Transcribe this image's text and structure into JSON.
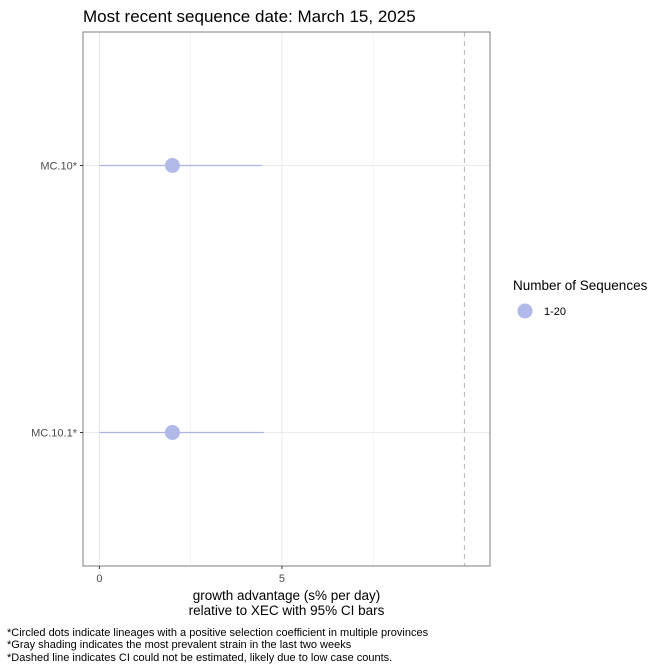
{
  "chart_data": {
    "type": "scatter",
    "title": "Most recent sequence date: March 15, 2025",
    "xlabel_lines": [
      "growth advantage (s% per day)",
      "relative to  XEC  with 95% CI bars"
    ],
    "ylabel": "",
    "xlim": [
      -0.45,
      10.7
    ],
    "x_ticks": [
      0,
      5
    ],
    "x_tick_labels": [
      "0",
      "5"
    ],
    "x_minor_gridlines": [
      2.5,
      7.5
    ],
    "categories": [
      "MC.10*",
      "MC.10.1*"
    ],
    "series": [
      {
        "points": [
          {
            "category": "MC.10*",
            "x": 2.0,
            "ci_low": 0.0,
            "ci_high": 4.45,
            "size_group": "1-20"
          },
          {
            "category": "MC.10.1*",
            "x": 2.0,
            "ci_low": 0.0,
            "ci_high": 4.5,
            "size_group": "1-20"
          }
        ]
      }
    ],
    "reference_line": {
      "x": 10.0,
      "style": "dashed"
    },
    "legend": {
      "title": "Number of Sequences",
      "position": "right",
      "entries": [
        "1-20"
      ]
    },
    "grid": true,
    "colors": {
      "point": "#b0b9e8",
      "ci": "#aab4e6",
      "ref_line": "#bdbdbd",
      "grid": "#ebebeb",
      "panel_border": "#7f7f7f"
    }
  },
  "footnotes": [
    "*Circled dots indicate lineages with a positive selection coefficient in multiple provinces",
    "*Gray shading indicates the most prevalent strain in the last two weeks",
    "*Dashed line indicates CI could not be estimated, likely due to low case counts."
  ]
}
